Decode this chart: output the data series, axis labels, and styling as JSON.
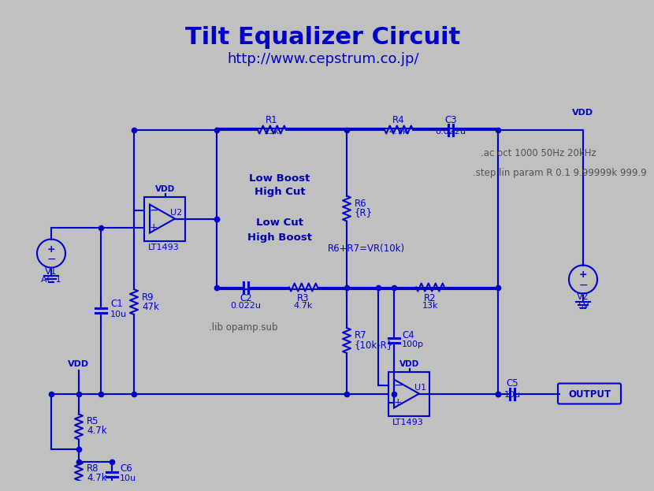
{
  "title": "Tilt Equalizer Circuit",
  "subtitle": "http://www.cepstrum.co.jp/",
  "bg_color": "#C0C0C0",
  "lc": "#0000CC",
  "title_color": "#0000CC",
  "ann_color": "#505050",
  "label_color": "#0000AA",
  "annotations": [
    [
      600,
      185,
      ".ac oct 1000 50Hz 20kHz"
    ],
    [
      590,
      210,
      ".step lin param R 0.1 9.99999k 999.9"
    ],
    [
      255,
      405,
      ".lib opamp.sub"
    ]
  ]
}
